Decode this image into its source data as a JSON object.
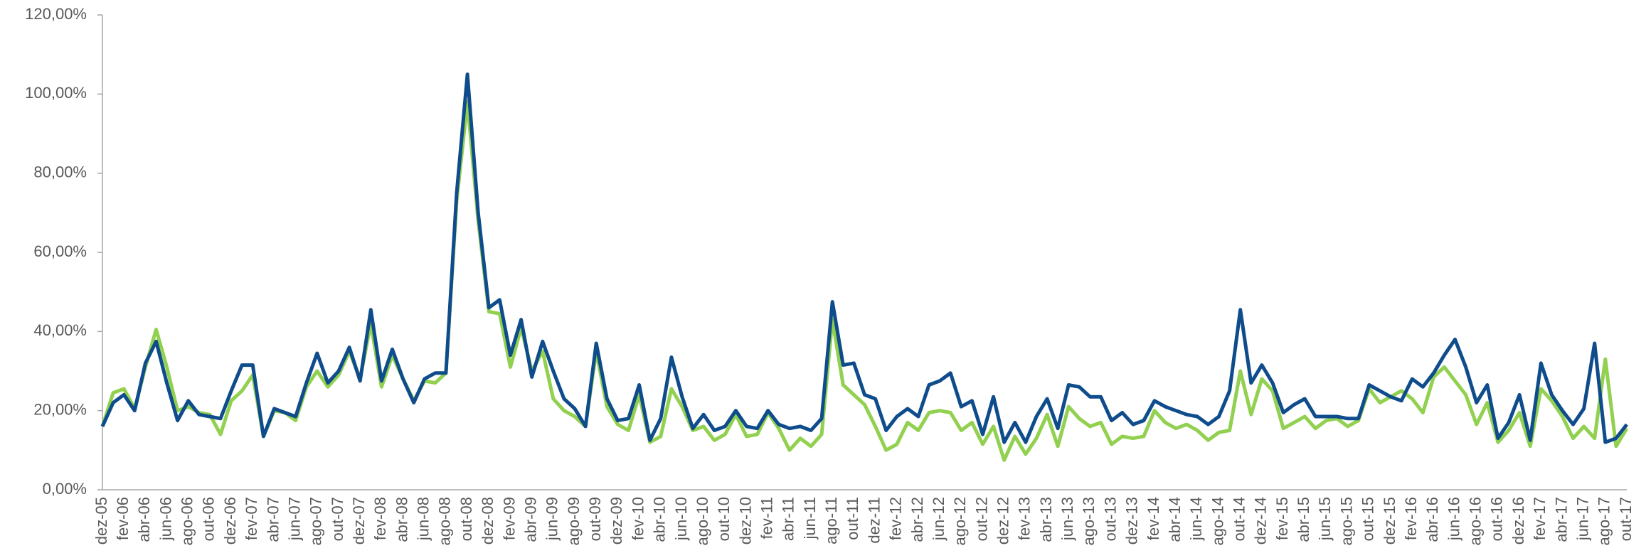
{
  "chart_data": {
    "type": "line",
    "categories": [
      "dez-05",
      null,
      "fev-06",
      null,
      "abr-06",
      null,
      "jun-06",
      null,
      "ago-06",
      null,
      "out-06",
      null,
      "dez-06",
      null,
      "fev-07",
      null,
      "abr-07",
      null,
      "jun-07",
      null,
      "ago-07",
      null,
      "out-07",
      null,
      "dez-07",
      null,
      "fev-08",
      null,
      "abr-08",
      null,
      "jun-08",
      null,
      "ago-08",
      null,
      "out-08",
      null,
      "dez-08",
      null,
      "fev-09",
      null,
      "abr-09",
      null,
      "jun-09",
      null,
      "ago-09",
      null,
      "out-09",
      null,
      "dez-09",
      null,
      "fev-10",
      null,
      "abr-10",
      null,
      "jun-10",
      null,
      "ago-10",
      null,
      "out-10",
      null,
      "dez-10",
      null,
      "fev-11",
      null,
      "abr-11",
      null,
      "jun-11",
      null,
      "ago-11",
      null,
      "out-11",
      null,
      "dez-11",
      null,
      "fev-12",
      null,
      "abr-12",
      null,
      "jun-12",
      null,
      "ago-12",
      null,
      "out-12",
      null,
      "dez-12",
      null,
      "fev-13",
      null,
      "abr-13",
      null,
      "jun-13",
      null,
      "ago-13",
      null,
      "out-13",
      null,
      "dez-13",
      null,
      "fev-14",
      null,
      "abr-14",
      null,
      "jun-14",
      null,
      "ago-14",
      null,
      "out-14",
      null,
      "dez-14",
      null,
      "fev-15",
      null,
      "abr-15",
      null,
      "jun-15",
      null,
      "ago-15",
      null,
      "out-15",
      null,
      "dez-15",
      null,
      "fev-16",
      null,
      "abr-16",
      null,
      "jun-16",
      null,
      "ago-16",
      null,
      "out-16",
      null,
      "dez-16",
      null,
      "fev-17",
      null,
      "abr-17",
      null,
      "jun-17",
      null,
      "ago-17",
      null,
      "out-17"
    ],
    "series": [
      {
        "color": "#92d050",
        "values": [
          16,
          24.5,
          25.5,
          20.5,
          31,
          40.5,
          31,
          20,
          21,
          19.5,
          19,
          14,
          22.5,
          25,
          29,
          13.5,
          20,
          19.5,
          17.5,
          26,
          30,
          26,
          29,
          35,
          28,
          42,
          26,
          34,
          28,
          22.5,
          27.5,
          27,
          29.5,
          73,
          98,
          68,
          45,
          44.5,
          31,
          41,
          30,
          35,
          23,
          20,
          18.5,
          16,
          35,
          21,
          16.5,
          15,
          24,
          12,
          13.5,
          25.5,
          21,
          15,
          16,
          12.5,
          14,
          19,
          13.5,
          14,
          19.5,
          15.5,
          10,
          13,
          11,
          14,
          43,
          26.5,
          24,
          21.5,
          16,
          10,
          11.5,
          17,
          15,
          19.5,
          20,
          19.5,
          15,
          17,
          11.5,
          16,
          7.5,
          13.5,
          9,
          13,
          19,
          11,
          21,
          18,
          16,
          17,
          11.5,
          13.5,
          13,
          13.5,
          20,
          17,
          15.5,
          16.5,
          15,
          12.5,
          14.5,
          15,
          30,
          19,
          28,
          25,
          15.5,
          17,
          18.5,
          15.5,
          17.5,
          18,
          16,
          17.5,
          25.5,
          22,
          23.5,
          25,
          23,
          19.5,
          28.5,
          31,
          27.5,
          24,
          16.5,
          22,
          12,
          15,
          19.5,
          11,
          25.5,
          22.5,
          18.5,
          13,
          16,
          13,
          33,
          11,
          15.5
        ]
      },
      {
        "color": "#0f4c8c",
        "values": [
          16,
          22,
          24,
          20,
          32,
          37.5,
          27,
          17.5,
          22.5,
          19,
          18.5,
          18,
          25,
          31.5,
          31.5,
          13.5,
          20.5,
          19.5,
          18.5,
          27,
          34.5,
          27,
          30,
          36,
          27.5,
          45.5,
          27.5,
          35.5,
          28,
          22,
          28,
          29.5,
          29.5,
          75,
          105,
          70,
          46,
          48,
          34,
          43,
          28.5,
          37.5,
          30,
          23,
          20.5,
          16,
          37,
          23,
          17.5,
          18,
          26.5,
          12.5,
          18,
          33.5,
          23.5,
          15.5,
          19,
          15,
          16,
          20,
          16,
          15.5,
          20,
          16.5,
          15.5,
          16,
          15,
          18,
          47.5,
          31.5,
          32,
          24,
          23,
          15,
          18.5,
          20.5,
          18.5,
          26.5,
          27.5,
          29.5,
          21,
          22.5,
          14,
          23.5,
          12,
          17,
          12,
          18.5,
          23,
          15.5,
          26.5,
          26,
          23.5,
          23.5,
          17.5,
          19.5,
          16.5,
          17.5,
          22.5,
          21,
          20,
          19,
          18.5,
          16.5,
          18.5,
          25,
          45.5,
          27,
          31.5,
          27,
          19.5,
          21.5,
          23,
          18.5,
          18.5,
          18.5,
          18,
          18,
          26.5,
          25,
          23.5,
          22.5,
          28,
          26,
          29.5,
          34,
          38,
          31,
          22,
          26.5,
          13,
          17,
          24,
          12.5,
          32,
          24,
          20,
          16.5,
          20.5,
          37,
          12,
          13,
          16.5
        ]
      }
    ],
    "ylim": [
      0,
      120
    ],
    "yticks": [
      {
        "value": 0,
        "label": "0,00%"
      },
      {
        "value": 20,
        "label": "20,00%"
      },
      {
        "value": 40,
        "label": "40,00%"
      },
      {
        "value": 60,
        "label": "60,00%"
      },
      {
        "value": 80,
        "label": "80,00%"
      },
      {
        "value": 100,
        "label": "100,00%"
      },
      {
        "value": 120,
        "label": "120,00%"
      }
    ]
  }
}
